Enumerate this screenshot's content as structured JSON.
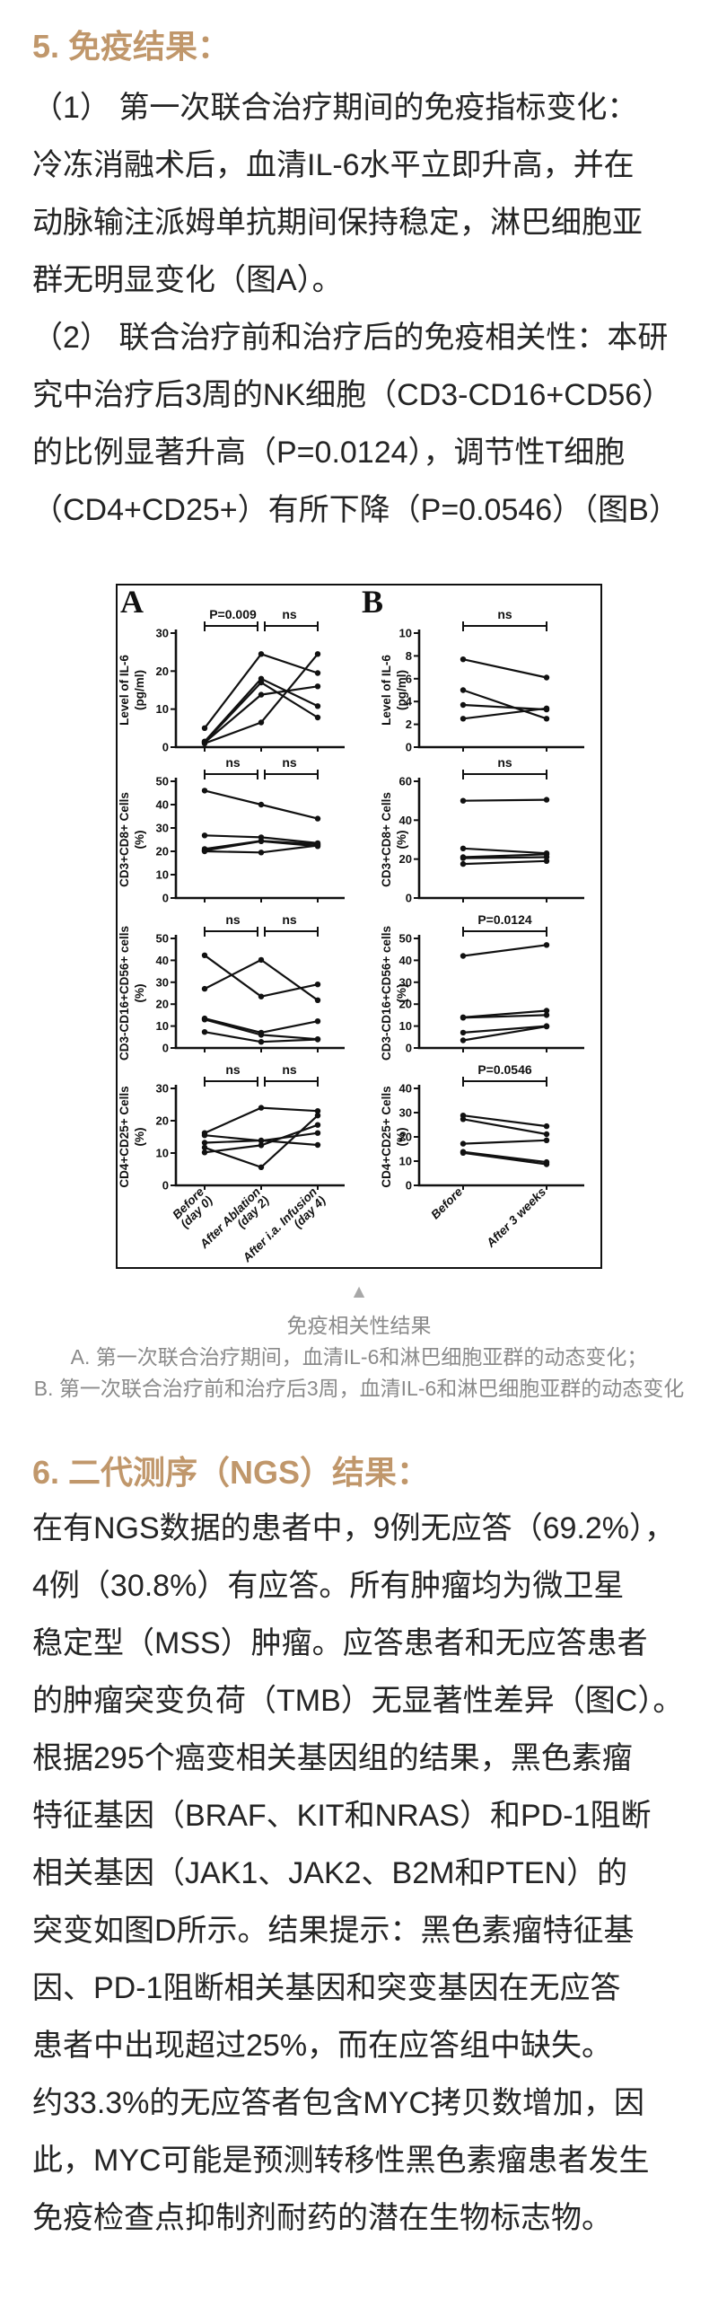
{
  "colors": {
    "accent": "#C0976B",
    "body_text": "#242424",
    "caption_gray": "#8a8a8a",
    "pointer_gray": "#a8a8a8",
    "chart_ink": "#111111"
  },
  "section5": {
    "heading": "5. 免疫结果：",
    "lines": [
      "（1）  第一次联合治疗期间的免疫指标变化：",
      "冷冻消融术后，血清IL-6水平立即升高，并在",
      "动脉输注派姆单抗期间保持稳定，淋巴细胞亚",
      "群无明显变化（图A）。",
      "（2）  联合治疗前和治疗后的免疫相关性：本研",
      "究中治疗后3周的NK细胞（CD3-CD16+CD56）",
      "的比例显著升高（P=0.0124），调节性T细胞",
      "（CD4+CD25+）有所下降（P=0.0546）（图B）"
    ]
  },
  "figure_caption": {
    "pointer": "▲",
    "lines": [
      "免疫相关性结果",
      "A. 第一次联合治疗期间，血清IL-6和淋巴细胞亚群的动态变化；",
      "B. 第一次联合治疗前和治疗后3周，血清IL-6和淋巴细胞亚群的动态变化"
    ]
  },
  "section6": {
    "heading": "6. 二代测序（NGS）结果：",
    "lines": [
      "在有NGS数据的患者中，9例无应答（69.2%），",
      "4例（30.8%）有应答。所有肿瘤均为微卫星",
      "稳定型（MSS）肿瘤。应答患者和无应答患者",
      "的肿瘤突变负荷（TMB）无显著性差异（图C）。",
      "根据295个癌变相关基因组的结果，黑色素瘤",
      "特征基因（BRAF、KIT和NRAS）和PD-1阻断",
      "相关基因（JAK1、JAK2、B2M和PTEN）的",
      "突变如图D所示。结果提示：黑色素瘤特征基",
      "因、PD-1阻断相关基因和突变基因在无应答",
      "患者中出现超过25%，而在应答组中缺失。",
      "约33.3%的无应答者包含MYC拷贝数增加，因",
      "此，MYC可能是预测转移性黑色素瘤患者发生",
      "免疫检查点抑制剂耐药的潜在生物标志物。"
    ]
  },
  "chart_data": {
    "type": "line",
    "grid": false,
    "legend": "none",
    "panels": {
      "A": {
        "label": "A",
        "x_categories": [
          [
            "Before",
            "(day 0)"
          ],
          [
            "After Ablation",
            "(day 2)"
          ],
          [
            "After i.a. Infusion",
            "(day 4)"
          ]
        ]
      },
      "B": {
        "label": "B",
        "x_categories": [
          [
            "Before"
          ],
          [
            "After 3 weeks"
          ]
        ]
      }
    },
    "charts": [
      {
        "panel": "A",
        "row": 1,
        "ylabel": [
          "Level of IL-6",
          "(pg/ml)"
        ],
        "ymax": 30,
        "yticks": [
          0,
          10,
          20,
          30
        ],
        "sig": [
          "P=0.009",
          "ns"
        ],
        "series": [
          [
            5,
            24.5,
            19.5
          ],
          [
            1.5,
            18,
            10.8
          ],
          [
            1.3,
            17,
            7.8
          ],
          [
            1.2,
            13.8,
            16
          ],
          [
            1,
            6.5,
            24.5
          ]
        ]
      },
      {
        "panel": "B",
        "row": 1,
        "ylabel": [
          "Level of IL-6",
          "(pg/ml)"
        ],
        "ymax": 10,
        "yticks": [
          0,
          2,
          4,
          6,
          8,
          10
        ],
        "sig": [
          "ns"
        ],
        "series": [
          [
            7.7,
            6.1
          ],
          [
            5,
            2.5
          ],
          [
            3.7,
            3.3
          ],
          [
            2.5,
            3.4
          ]
        ]
      },
      {
        "panel": "A",
        "row": 2,
        "ylabel": [
          "CD3+CD8+ Cells",
          "(%)"
        ],
        "ymax": 50,
        "yticks": [
          0,
          10,
          20,
          30,
          40,
          50
        ],
        "sig": [
          "ns",
          "ns"
        ],
        "series": [
          [
            46,
            40,
            34
          ],
          [
            26.8,
            26,
            23.5
          ],
          [
            21,
            24.5,
            23
          ],
          [
            20.3,
            24.3,
            22.2
          ],
          [
            20,
            19.5,
            22.5
          ]
        ]
      },
      {
        "panel": "B",
        "row": 2,
        "ylabel": [
          "CD3+CD8+ Cells",
          "(%)"
        ],
        "ymax": 60,
        "yticks": [
          0,
          20,
          40,
          60
        ],
        "sig": [
          "ns"
        ],
        "series": [
          [
            50,
            50.5
          ],
          [
            25.5,
            23
          ],
          [
            21,
            22.5
          ],
          [
            20.5,
            21
          ],
          [
            17.5,
            19
          ]
        ]
      },
      {
        "panel": "A",
        "row": 3,
        "ylabel": [
          "CD3-CD16+CD56+ cells",
          "(%)"
        ],
        "ymax": 50,
        "yticks": [
          0,
          10,
          20,
          30,
          40,
          50
        ],
        "sig": [
          "ns",
          "ns"
        ],
        "series": [
          [
            42.3,
            23.5,
            29
          ],
          [
            27,
            40.2,
            21.8
          ],
          [
            13.5,
            7,
            12.2
          ],
          [
            13,
            6,
            4
          ],
          [
            7.3,
            2.8,
            3.9
          ]
        ]
      },
      {
        "panel": "B",
        "row": 3,
        "ylabel": [
          "CD3-CD16+CD56+ cells",
          "(%)"
        ],
        "ymax": 50,
        "yticks": [
          0,
          10,
          20,
          30,
          40,
          50
        ],
        "sig": [
          "P=0.0124"
        ],
        "series": [
          [
            42,
            47
          ],
          [
            14,
            17
          ],
          [
            13.8,
            15
          ],
          [
            7,
            10
          ],
          [
            3.5,
            9.8
          ]
        ]
      },
      {
        "panel": "A",
        "row": 4,
        "ylabel": [
          "CD4+CD25+ Cells",
          "(%)"
        ],
        "ymax": 30,
        "yticks": [
          0,
          10,
          20,
          30
        ],
        "sig": [
          "ns",
          "ns"
        ],
        "series": [
          [
            16.2,
            24,
            23
          ],
          [
            15.5,
            13.8,
            16.2
          ],
          [
            13.2,
            13.9,
            12.5
          ],
          [
            11.7,
            5.6,
            21.6
          ],
          [
            10.2,
            12.4,
            18.7
          ]
        ]
      },
      {
        "panel": "B",
        "row": 4,
        "ylabel": [
          "CD4+CD25+ Cells",
          "(%)"
        ],
        "ymax": 40,
        "yticks": [
          0,
          10,
          20,
          30,
          40
        ],
        "sig": [
          "P=0.0546"
        ],
        "series": [
          [
            28.8,
            24.4
          ],
          [
            27.3,
            21.1
          ],
          [
            17.2,
            18.6
          ],
          [
            13.8,
            9.6
          ],
          [
            13.4,
            8.7
          ]
        ]
      }
    ]
  }
}
